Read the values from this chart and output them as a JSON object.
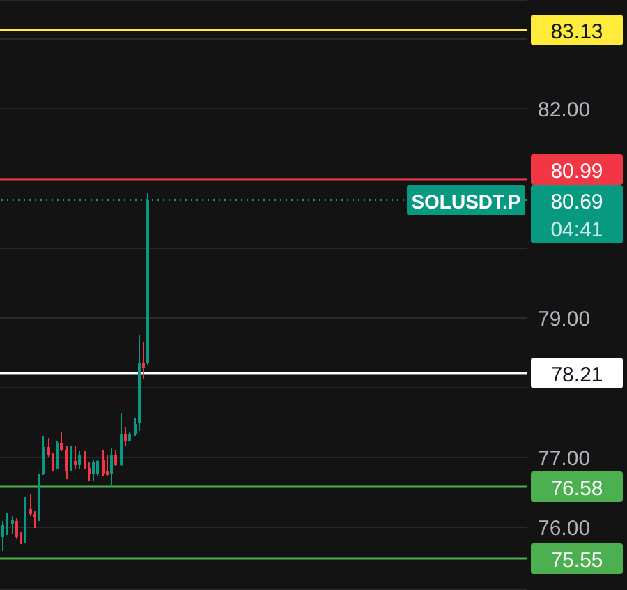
{
  "chart_data": {
    "type": "candlestick",
    "categories": [
      null,
      null,
      null,
      null,
      null,
      null,
      null,
      null,
      null,
      null,
      null,
      null,
      null,
      null,
      null,
      null,
      null,
      null,
      null,
      null,
      null,
      null,
      null,
      null,
      null,
      null,
      null,
      null,
      null,
      null,
      null,
      null,
      null,
      null,
      null,
      null,
      null,
      null,
      null,
      null,
      null,
      null,
      null,
      null,
      null,
      null,
      null,
      null,
      null,
      null,
      null,
      null,
      null,
      null,
      null,
      null,
      null,
      null,
      null,
      null,
      null,
      null,
      null,
      null,
      null,
      null,
      null,
      null,
      null,
      null,
      null,
      null,
      null,
      null,
      null,
      null,
      null,
      null,
      null,
      null,
      null,
      null,
      null,
      null,
      null,
      null,
      null,
      null,
      null,
      null,
      null,
      null,
      null,
      null,
      null,
      null,
      null,
      null,
      null,
      null,
      null,
      null,
      null,
      null,
      null,
      null,
      null,
      null,
      null,
      null,
      null,
      null,
      null,
      null,
      null,
      null
    ],
    "ohlc": [
      [
        75.86,
        76.09,
        75.66,
        76.03
      ],
      [
        75.96,
        76.21,
        75.89,
        76.03
      ],
      [
        76.04,
        76.16,
        75.91,
        76.11
      ],
      [
        76.09,
        76.13,
        75.83,
        75.86
      ],
      [
        75.86,
        75.93,
        75.76,
        75.77
      ],
      [
        75.79,
        76.43,
        75.77,
        76.26
      ],
      [
        76.26,
        76.48,
        76.16,
        76.19
      ],
      [
        76.19,
        76.23,
        75.99,
        76.16
      ],
      [
        76.16,
        76.76,
        76.09,
        76.73
      ],
      [
        76.76,
        77.31,
        76.75,
        77.15
      ],
      [
        77.15,
        77.28,
        77.0,
        77.03
      ],
      [
        77.04,
        77.06,
        76.81,
        76.83
      ],
      [
        76.84,
        77.24,
        76.83,
        77.21
      ],
      [
        77.21,
        77.37,
        77.09,
        77.11
      ],
      [
        77.11,
        77.16,
        76.69,
        76.81
      ],
      [
        76.83,
        77.16,
        76.81,
        76.95
      ],
      [
        76.95,
        77.17,
        76.83,
        76.89
      ],
      [
        76.89,
        77.09,
        76.83,
        77.03
      ],
      [
        77.03,
        77.09,
        76.83,
        76.85
      ],
      [
        76.85,
        76.93,
        76.66,
        76.76
      ],
      [
        76.76,
        76.96,
        76.66,
        76.93
      ],
      [
        76.76,
        76.97,
        76.73,
        76.95
      ],
      [
        76.96,
        77.11,
        76.73,
        76.76
      ],
      [
        76.81,
        77.03,
        76.73,
        76.75
      ],
      [
        76.76,
        77.13,
        76.57,
        77.04
      ],
      [
        77.04,
        77.11,
        76.88,
        76.89
      ],
      [
        76.89,
        77.64,
        76.88,
        77.33
      ],
      [
        77.33,
        77.44,
        77.17,
        77.24
      ],
      [
        77.24,
        77.36,
        77.23,
        77.33
      ],
      [
        77.33,
        77.56,
        77.31,
        77.48
      ],
      [
        77.49,
        78.76,
        77.38,
        78.36
      ],
      [
        78.36,
        78.66,
        78.13,
        78.29
      ],
      [
        78.36,
        80.79,
        78.33,
        80.69
      ],
      null,
      null,
      null,
      null,
      null,
      null,
      null,
      null,
      null,
      null,
      null,
      null,
      null,
      null,
      null,
      null,
      null,
      null,
      null,
      null,
      null,
      null,
      null,
      null,
      null,
      null,
      null,
      null,
      null,
      null,
      null,
      null,
      null,
      null,
      null,
      null,
      null,
      null,
      null,
      null,
      null,
      null,
      null,
      null,
      null,
      null,
      null,
      null,
      null,
      null,
      null,
      null,
      null,
      null,
      null,
      null,
      null,
      null,
      null,
      null,
      null,
      null,
      null,
      null,
      null,
      null,
      null,
      null,
      null,
      null,
      null,
      null,
      null,
      null,
      null,
      null,
      null,
      null,
      null,
      null,
      null,
      null,
      null
    ],
    "colors": [
      "#089981",
      "#089981",
      "#089981",
      "#f23645",
      "#f23645",
      "#089981",
      "#f23645",
      "#f23645",
      "#089981",
      "#089981",
      "#f23645",
      "#f23645",
      "#089981",
      "#f23645",
      "#f23645",
      "#089981",
      "#f23645",
      "#089981",
      "#f23645",
      "#f23645",
      "#089981",
      "#089981",
      "#f23645",
      "#f23645",
      "#089981",
      "#f23645",
      "#089981",
      "#f23645",
      "#089981",
      "#089981",
      "#089981",
      "#f23645",
      "#089981",
      null,
      null,
      null,
      null,
      null,
      null,
      null,
      null,
      null,
      null,
      null,
      null,
      null,
      null,
      null,
      null,
      null,
      null,
      null,
      null,
      null,
      null,
      null,
      null,
      null,
      null,
      null,
      null,
      null,
      null,
      null,
      null,
      null,
      null,
      null,
      null,
      null,
      null,
      null,
      null,
      null,
      null,
      null,
      null,
      null,
      null,
      null,
      null,
      null,
      null,
      null,
      null,
      null,
      null,
      null,
      null,
      null,
      null,
      null,
      null,
      null,
      null,
      null,
      null,
      null,
      null,
      null,
      null,
      null,
      null,
      null,
      null,
      null,
      null,
      null,
      null,
      null,
      null,
      null,
      null,
      null,
      null,
      null
    ],
    "ylim": [
      75.1,
      83.56
    ],
    "yticks": [
      {
        "value": 76,
        "label": "76.00"
      },
      {
        "value": 77,
        "label": "77.00"
      },
      {
        "value": 78,
        "label": null
      },
      {
        "value": 79,
        "label": "79.00"
      },
      {
        "value": 80,
        "label": null
      },
      {
        "value": 81,
        "label": null
      },
      {
        "value": 82,
        "label": "82.00"
      },
      {
        "value": 83,
        "label": null
      }
    ],
    "tick_labels": "y",
    "grid": "y",
    "ref_lines": [
      {
        "axis": "y",
        "value": 83.13,
        "color": "#ffeb3b",
        "label": "83.13"
      },
      {
        "axis": "y",
        "value": 80.99,
        "color": "#f23645",
        "label": "80.99"
      },
      {
        "axis": "y",
        "value": 80.69,
        "color": "#089981",
        "line_style": "dotted",
        "label": "80.69"
      },
      {
        "axis": "y",
        "value": 78.21,
        "color": "#ffffff",
        "label": "78.21"
      },
      {
        "axis": "y",
        "value": 76.58,
        "color": "#4caf50",
        "label": "76.58"
      },
      {
        "axis": "y",
        "value": 75.55,
        "color": "#4caf50",
        "label": "75.55"
      }
    ],
    "annotations": [
      "SOLUSDT.P",
      "04:41"
    ]
  }
}
